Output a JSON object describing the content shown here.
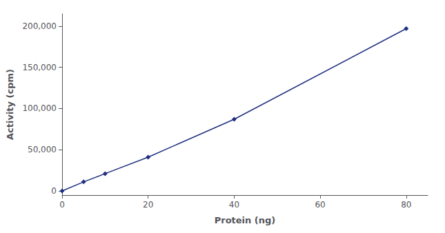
{
  "chart_data": {
    "type": "line",
    "x": [
      0,
      5,
      10,
      20,
      40,
      80
    ],
    "values": [
      0,
      11000,
      21000,
      41000,
      87000,
      197000
    ],
    "color": "#1f3080",
    "marker": "diamond",
    "xlabel": "Protein (ng)",
    "ylabel": "Activity (cpm)",
    "xlim": [
      0,
      85
    ],
    "ylim": [
      -5000,
      215000
    ],
    "xticks": [
      0,
      20,
      40,
      60,
      80
    ],
    "yticks": [
      0,
      {
        "value": 50000,
        "label": "50,000"
      },
      {
        "value": 100000,
        "label": "100,000"
      },
      {
        "value": 150000,
        "label": "150,000"
      },
      {
        "value": 200000,
        "label": "200,000"
      }
    ],
    "grid": false
  }
}
